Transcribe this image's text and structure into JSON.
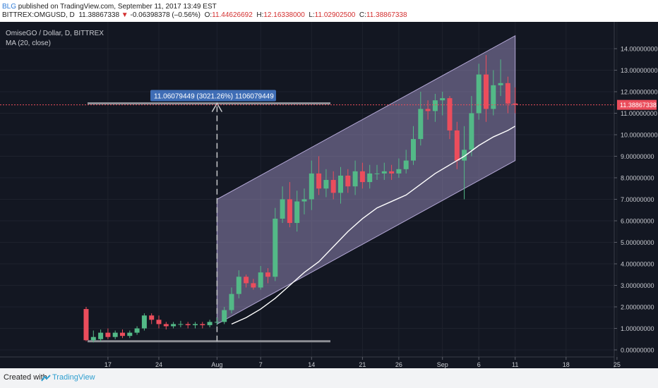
{
  "header": {
    "author": "BLG",
    "published_text": "published on TradingView.com, September 11, 2017 13:49 EST",
    "symbol": "BITTREX:OMGUSD, D",
    "price": "11.38867338",
    "change_arrow": "▼",
    "change": "-0.06398378 (–0.56%)",
    "open_label": "O:",
    "open": "11.44626692",
    "high_label": "H:",
    "high": "12.16338000",
    "low_label": "L:",
    "low": "11.02902500",
    "close_label": "C:",
    "close": "11.38867338"
  },
  "legend": {
    "title": "OmiseGO / Dollar, D, BITTREX",
    "indicator": "MA (20, close)"
  },
  "colors": {
    "background": "#131722",
    "up": "#53b987",
    "down": "#eb4d5c",
    "channel": "#9c8fbf",
    "ma": "#ffffff",
    "measure_label": "#3f6db5",
    "price_tag": "#eb4d5c"
  },
  "measure": {
    "label": "11.06079449 (3021.26%) 1106079449"
  },
  "price_tag": "11.38867338",
  "footer": {
    "created_with": "Created with",
    "brand": "TradingView",
    "logo_icon": "tradingview-logo-icon"
  },
  "chart_data": {
    "type": "candlestick",
    "title": "OmiseGO / Dollar, D, BITTREX",
    "x_tick_labels": [
      "17",
      "24",
      "Aug",
      "7",
      "14",
      "21",
      "26",
      "Sep",
      "6",
      "11",
      "18",
      "25"
    ],
    "y_tick_labels": [
      "0.00000000",
      "1.00000000",
      "2.00000000",
      "3.00000000",
      "4.00000000",
      "5.00000000",
      "6.00000000",
      "7.00000000",
      "8.00000000",
      "9.00000000",
      "10.00000000",
      "11.00000000",
      "12.00000000",
      "13.00000000",
      "14.00000000"
    ],
    "ylim": [
      -0.4,
      14.8
    ],
    "dates": [
      "Jul 14",
      "Jul 15",
      "Jul 16",
      "Jul 17",
      "Jul 18",
      "Jul 19",
      "Jul 20",
      "Jul 21",
      "Jul 22",
      "Jul 23",
      "Jul 24",
      "Jul 25",
      "Jul 26",
      "Jul 27",
      "Jul 28",
      "Jul 29",
      "Jul 30",
      "Jul 31",
      "Aug 1",
      "Aug 2",
      "Aug 3",
      "Aug 4",
      "Aug 5",
      "Aug 6",
      "Aug 7",
      "Aug 8",
      "Aug 9",
      "Aug 10",
      "Aug 11",
      "Aug 12",
      "Aug 13",
      "Aug 14",
      "Aug 15",
      "Aug 16",
      "Aug 17",
      "Aug 18",
      "Aug 19",
      "Aug 20",
      "Aug 21",
      "Aug 22",
      "Aug 23",
      "Aug 24",
      "Aug 25",
      "Aug 26",
      "Aug 27",
      "Aug 28",
      "Aug 29",
      "Aug 30",
      "Aug 31",
      "Sep 1",
      "Sep 2",
      "Sep 3",
      "Sep 4",
      "Sep 5",
      "Sep 6",
      "Sep 7",
      "Sep 8",
      "Sep 9",
      "Sep 10",
      "Sep 11"
    ],
    "open": [
      1.9,
      0.45,
      0.5,
      0.8,
      0.6,
      0.8,
      0.65,
      0.8,
      1.0,
      1.6,
      1.4,
      1.2,
      1.1,
      1.2,
      1.2,
      1.15,
      1.2,
      1.15,
      1.3,
      1.3,
      1.85,
      2.6,
      3.4,
      3.1,
      2.9,
      3.6,
      3.4,
      6.1,
      7.0,
      5.9,
      6.9,
      7.0,
      8.2,
      7.5,
      7.9,
      7.3,
      8.1,
      7.6,
      8.3,
      7.8,
      8.2,
      8.2,
      8.3,
      8.2,
      8.4,
      8.8,
      9.8,
      11.2,
      11.1,
      11.6,
      11.7,
      10.2,
      8.8,
      9.3,
      11.0,
      12.8,
      11.2,
      12.3,
      12.4,
      11.45
    ],
    "close": [
      0.45,
      0.6,
      0.8,
      0.6,
      0.8,
      0.65,
      0.8,
      1.0,
      1.6,
      1.4,
      1.2,
      1.1,
      1.2,
      1.2,
      1.15,
      1.2,
      1.15,
      1.3,
      1.3,
      1.85,
      2.6,
      3.4,
      3.1,
      2.9,
      3.6,
      3.4,
      6.1,
      7.0,
      5.9,
      6.9,
      7.0,
      8.2,
      7.5,
      7.9,
      7.3,
      8.1,
      7.6,
      8.3,
      7.8,
      8.2,
      8.2,
      8.3,
      8.2,
      8.4,
      8.8,
      9.8,
      11.2,
      11.1,
      11.6,
      11.7,
      10.2,
      8.8,
      9.3,
      11.0,
      12.8,
      11.2,
      12.3,
      12.4,
      11.45,
      11.39
    ],
    "high": [
      2.0,
      0.9,
      0.95,
      1.0,
      0.9,
      0.95,
      0.9,
      1.1,
      1.7,
      1.7,
      1.6,
      1.3,
      1.3,
      1.35,
      1.3,
      1.3,
      1.3,
      1.4,
      1.5,
      2.0,
      2.9,
      3.7,
      3.5,
      3.3,
      3.9,
      3.8,
      6.6,
      7.6,
      7.8,
      7.4,
      7.5,
      8.8,
      9.0,
      8.4,
      8.3,
      8.5,
      8.4,
      8.8,
      8.7,
      8.6,
      8.6,
      8.7,
      8.6,
      8.9,
      9.3,
      10.4,
      12.0,
      11.6,
      11.9,
      12.0,
      11.8,
      10.6,
      10.4,
      11.8,
      13.3,
      13.7,
      13.0,
      13.5,
      12.7,
      12.2
    ],
    "low": [
      0.4,
      0.35,
      0.4,
      0.5,
      0.5,
      0.55,
      0.55,
      0.7,
      0.9,
      1.2,
      1.0,
      0.95,
      1.0,
      1.05,
      1.0,
      1.0,
      1.0,
      1.05,
      1.15,
      1.2,
      1.7,
      2.4,
      2.9,
      2.8,
      2.8,
      3.1,
      3.2,
      5.9,
      5.7,
      5.5,
      6.3,
      6.5,
      7.2,
      7.1,
      7.0,
      6.8,
      7.3,
      7.2,
      7.5,
      7.5,
      7.9,
      7.9,
      7.9,
      8.0,
      8.2,
      8.6,
      9.5,
      10.7,
      10.6,
      10.9,
      9.8,
      8.4,
      7.0,
      9.0,
      10.7,
      10.6,
      10.9,
      11.8,
      11.0,
      11.0
    ],
    "ma": [
      {
        "x": "Aug 3",
        "y": 1.2
      },
      {
        "x": "Aug 5",
        "y": 1.5
      },
      {
        "x": "Aug 7",
        "y": 1.9
      },
      {
        "x": "Aug 9",
        "y": 2.4
      },
      {
        "x": "Aug 11",
        "y": 3.0
      },
      {
        "x": "Aug 13",
        "y": 3.6
      },
      {
        "x": "Aug 15",
        "y": 4.1
      },
      {
        "x": "Aug 17",
        "y": 4.8
      },
      {
        "x": "Aug 19",
        "y": 5.5
      },
      {
        "x": "Aug 21",
        "y": 6.1
      },
      {
        "x": "Aug 23",
        "y": 6.6
      },
      {
        "x": "Aug 25",
        "y": 6.9
      },
      {
        "x": "Aug 27",
        "y": 7.2
      },
      {
        "x": "Aug 29",
        "y": 7.7
      },
      {
        "x": "Aug 31",
        "y": 8.2
      },
      {
        "x": "Sep 2",
        "y": 8.6
      },
      {
        "x": "Sep 4",
        "y": 9.0
      },
      {
        "x": "Sep 6",
        "y": 9.5
      },
      {
        "x": "Sep 8",
        "y": 9.9
      },
      {
        "x": "Sep 10",
        "y": 10.2
      },
      {
        "x": "Sep 11",
        "y": 10.4
      }
    ],
    "channel": {
      "upper": [
        {
          "x": "Aug 1",
          "y": 7.0
        },
        {
          "x": "Sep 11",
          "y": 14.6
        }
      ],
      "lower": [
        {
          "x": "Aug 1",
          "y": 1.2
        },
        {
          "x": "Sep 11",
          "y": 8.8
        }
      ]
    },
    "measure": {
      "from": {
        "x": "Aug 1",
        "y": 0.4
      },
      "to": {
        "x": "Aug 1",
        "y": 11.46
      }
    },
    "current_price": 11.38867338
  }
}
